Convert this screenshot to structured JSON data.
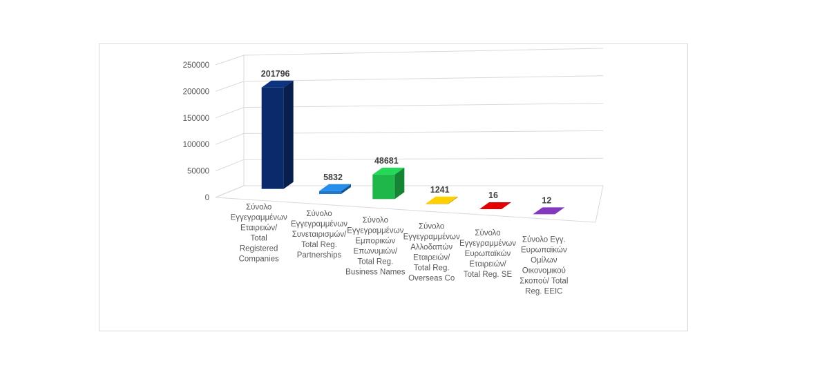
{
  "chart_data": {
    "type": "bar",
    "style": "3d-perspective-column",
    "categories": [
      [
        "Σύνολο",
        "Εγγεγραμμένων",
        "Εταιρειών/",
        "Total",
        "Registered",
        "Companies"
      ],
      [
        "Σύνολο",
        "Εγγεγραμμένων",
        "Συνεταιρισμών/",
        "Total Reg.",
        "Partnerships"
      ],
      [
        "Σύνολο",
        "Εγγεγραμμένων",
        "Εμπορικών",
        "Επωνυμιών/",
        "Total Reg.",
        "Business Names"
      ],
      [
        "Σύνολο",
        "Εγγεγραμμένων",
        "Αλλοδαπών",
        "Εταιρειών/",
        "Total Reg.",
        "Overseas Co"
      ],
      [
        "Σύνολο",
        "Εγγεγραμμένων",
        "Ευρωπαϊκών",
        "Εταιρειών/",
        "Total Reg. SE"
      ],
      [
        "Σύνολο Εγγ.",
        "Ευρωπαϊκών",
        "Ομίλων",
        "Οικονομικού",
        "Σκοπού/ Total",
        "Reg. EEIC"
      ]
    ],
    "values": [
      201796,
      5832,
      48681,
      1241,
      16,
      12
    ],
    "data_labels": [
      "201796",
      "5832",
      "48681",
      "1241",
      "16",
      "12"
    ],
    "colors": [
      "#0b2a6b",
      "#1f78c8",
      "#1eb84a",
      "#e8b000",
      "#c00000",
      "#7030a0"
    ],
    "ylim": [
      0,
      250000
    ],
    "yticks": [
      "0",
      "50000",
      "100000",
      "150000",
      "200000",
      "250000"
    ],
    "grid": true,
    "legend": "none"
  }
}
